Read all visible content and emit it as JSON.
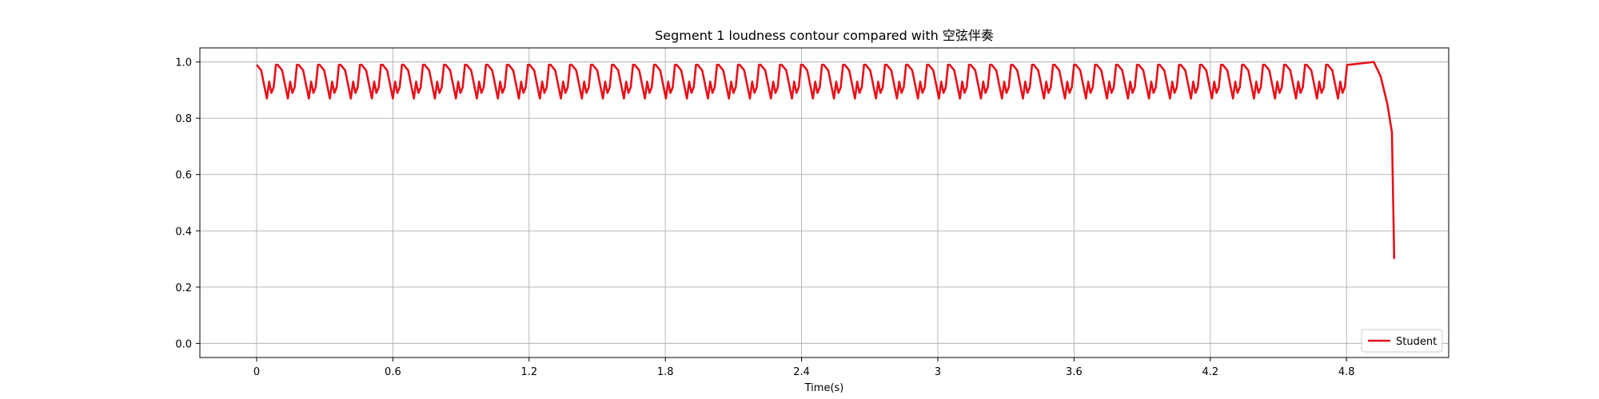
{
  "chart_data": {
    "type": "line",
    "title": "Segment 1 loudness contour compared with 空弦伴奏",
    "xlabel": "Time(s)",
    "ylabel": "",
    "xlim": [
      -0.25,
      5.25
    ],
    "ylim": [
      -0.05,
      1.05
    ],
    "xticks": [
      0,
      0.6,
      1.2,
      1.8,
      2.4,
      3.0,
      3.6,
      4.2,
      4.8
    ],
    "xtick_labels": [
      "0",
      "0.6",
      "1.2",
      "1.8",
      "2.4",
      "3",
      "3.6",
      "4.2",
      "4.8"
    ],
    "yticks": [
      0.0,
      0.2,
      0.4,
      0.6,
      0.8,
      1.0
    ],
    "ytick_labels": [
      "0.0",
      "0.2",
      "0.4",
      "0.6",
      "0.8",
      "1.0"
    ],
    "grid": true,
    "legend_position": "lower-right",
    "series": [
      {
        "name": "Student",
        "color": "#e8101a",
        "period": 0.0925,
        "cycle_shape": [
          [
            0.0,
            0.99
          ],
          [
            0.02,
            0.97
          ],
          [
            0.045,
            0.87
          ],
          [
            0.055,
            0.93
          ],
          [
            0.065,
            0.89
          ],
          [
            0.075,
            0.91
          ],
          [
            0.085,
            0.99
          ],
          [
            0.0925,
            0.99
          ]
        ],
        "cycles_end": 4.9,
        "tail": [
          [
            4.92,
            1.0
          ],
          [
            4.95,
            0.95
          ],
          [
            4.98,
            0.85
          ],
          [
            5.0,
            0.75
          ],
          [
            5.01,
            0.3
          ]
        ]
      }
    ]
  }
}
